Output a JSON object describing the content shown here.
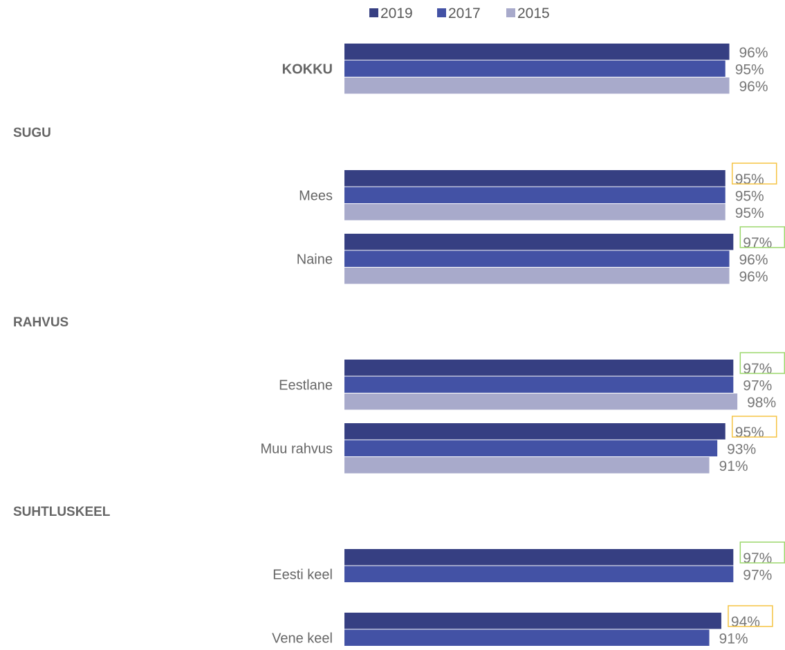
{
  "chart_data": {
    "type": "bar",
    "orientation": "horizontal",
    "title": "",
    "xlabel": "",
    "ylabel": "",
    "xlim": [
      0,
      100
    ],
    "grid": false,
    "legend_position": "top",
    "series": [
      {
        "name": "2019",
        "color": "#363f82"
      },
      {
        "name": "2017",
        "color": "#4352a5"
      },
      {
        "name": "2015",
        "color": "#a8aacb"
      }
    ],
    "rows": [
      {
        "kind": "category",
        "label": "KOKKU",
        "bold": true,
        "values": [
          96,
          95,
          96
        ],
        "labels": [
          "96%",
          "95%",
          "96%"
        ],
        "highlight": null
      },
      {
        "kind": "section",
        "label": "SUGU"
      },
      {
        "kind": "category",
        "label": "Mees",
        "bold": false,
        "values": [
          95,
          95,
          95
        ],
        "labels": [
          "95%",
          "95%",
          "95%"
        ],
        "highlight": "orange"
      },
      {
        "kind": "category",
        "label": "Naine",
        "bold": false,
        "values": [
          97,
          96,
          96
        ],
        "labels": [
          "97%",
          "96%",
          "96%"
        ],
        "highlight": "green"
      },
      {
        "kind": "section",
        "label": "RAHVUS"
      },
      {
        "kind": "category",
        "label": "Eestlane",
        "bold": false,
        "values": [
          97,
          97,
          98
        ],
        "labels": [
          "97%",
          "97%",
          "98%"
        ],
        "highlight": "green"
      },
      {
        "kind": "category",
        "label": "Muu rahvus",
        "bold": false,
        "values": [
          95,
          93,
          91
        ],
        "labels": [
          "95%",
          "93%",
          "91%"
        ],
        "highlight": "orange"
      },
      {
        "kind": "section",
        "label": "SUHTLUSKEEL"
      },
      {
        "kind": "category",
        "label": "Eesti keel",
        "bold": false,
        "values": [
          97,
          97
        ],
        "labels": [
          "97%",
          "97%"
        ],
        "highlight": "green"
      },
      {
        "kind": "category",
        "label": "Vene keel",
        "bold": false,
        "values": [
          94,
          91
        ],
        "labels": [
          "94%",
          "91%"
        ],
        "highlight": "orange"
      }
    ],
    "highlight_colors": {
      "orange": "#f5c342",
      "green": "#9bd76c"
    },
    "label_color": "#777777",
    "category_label_color": "#666666"
  }
}
